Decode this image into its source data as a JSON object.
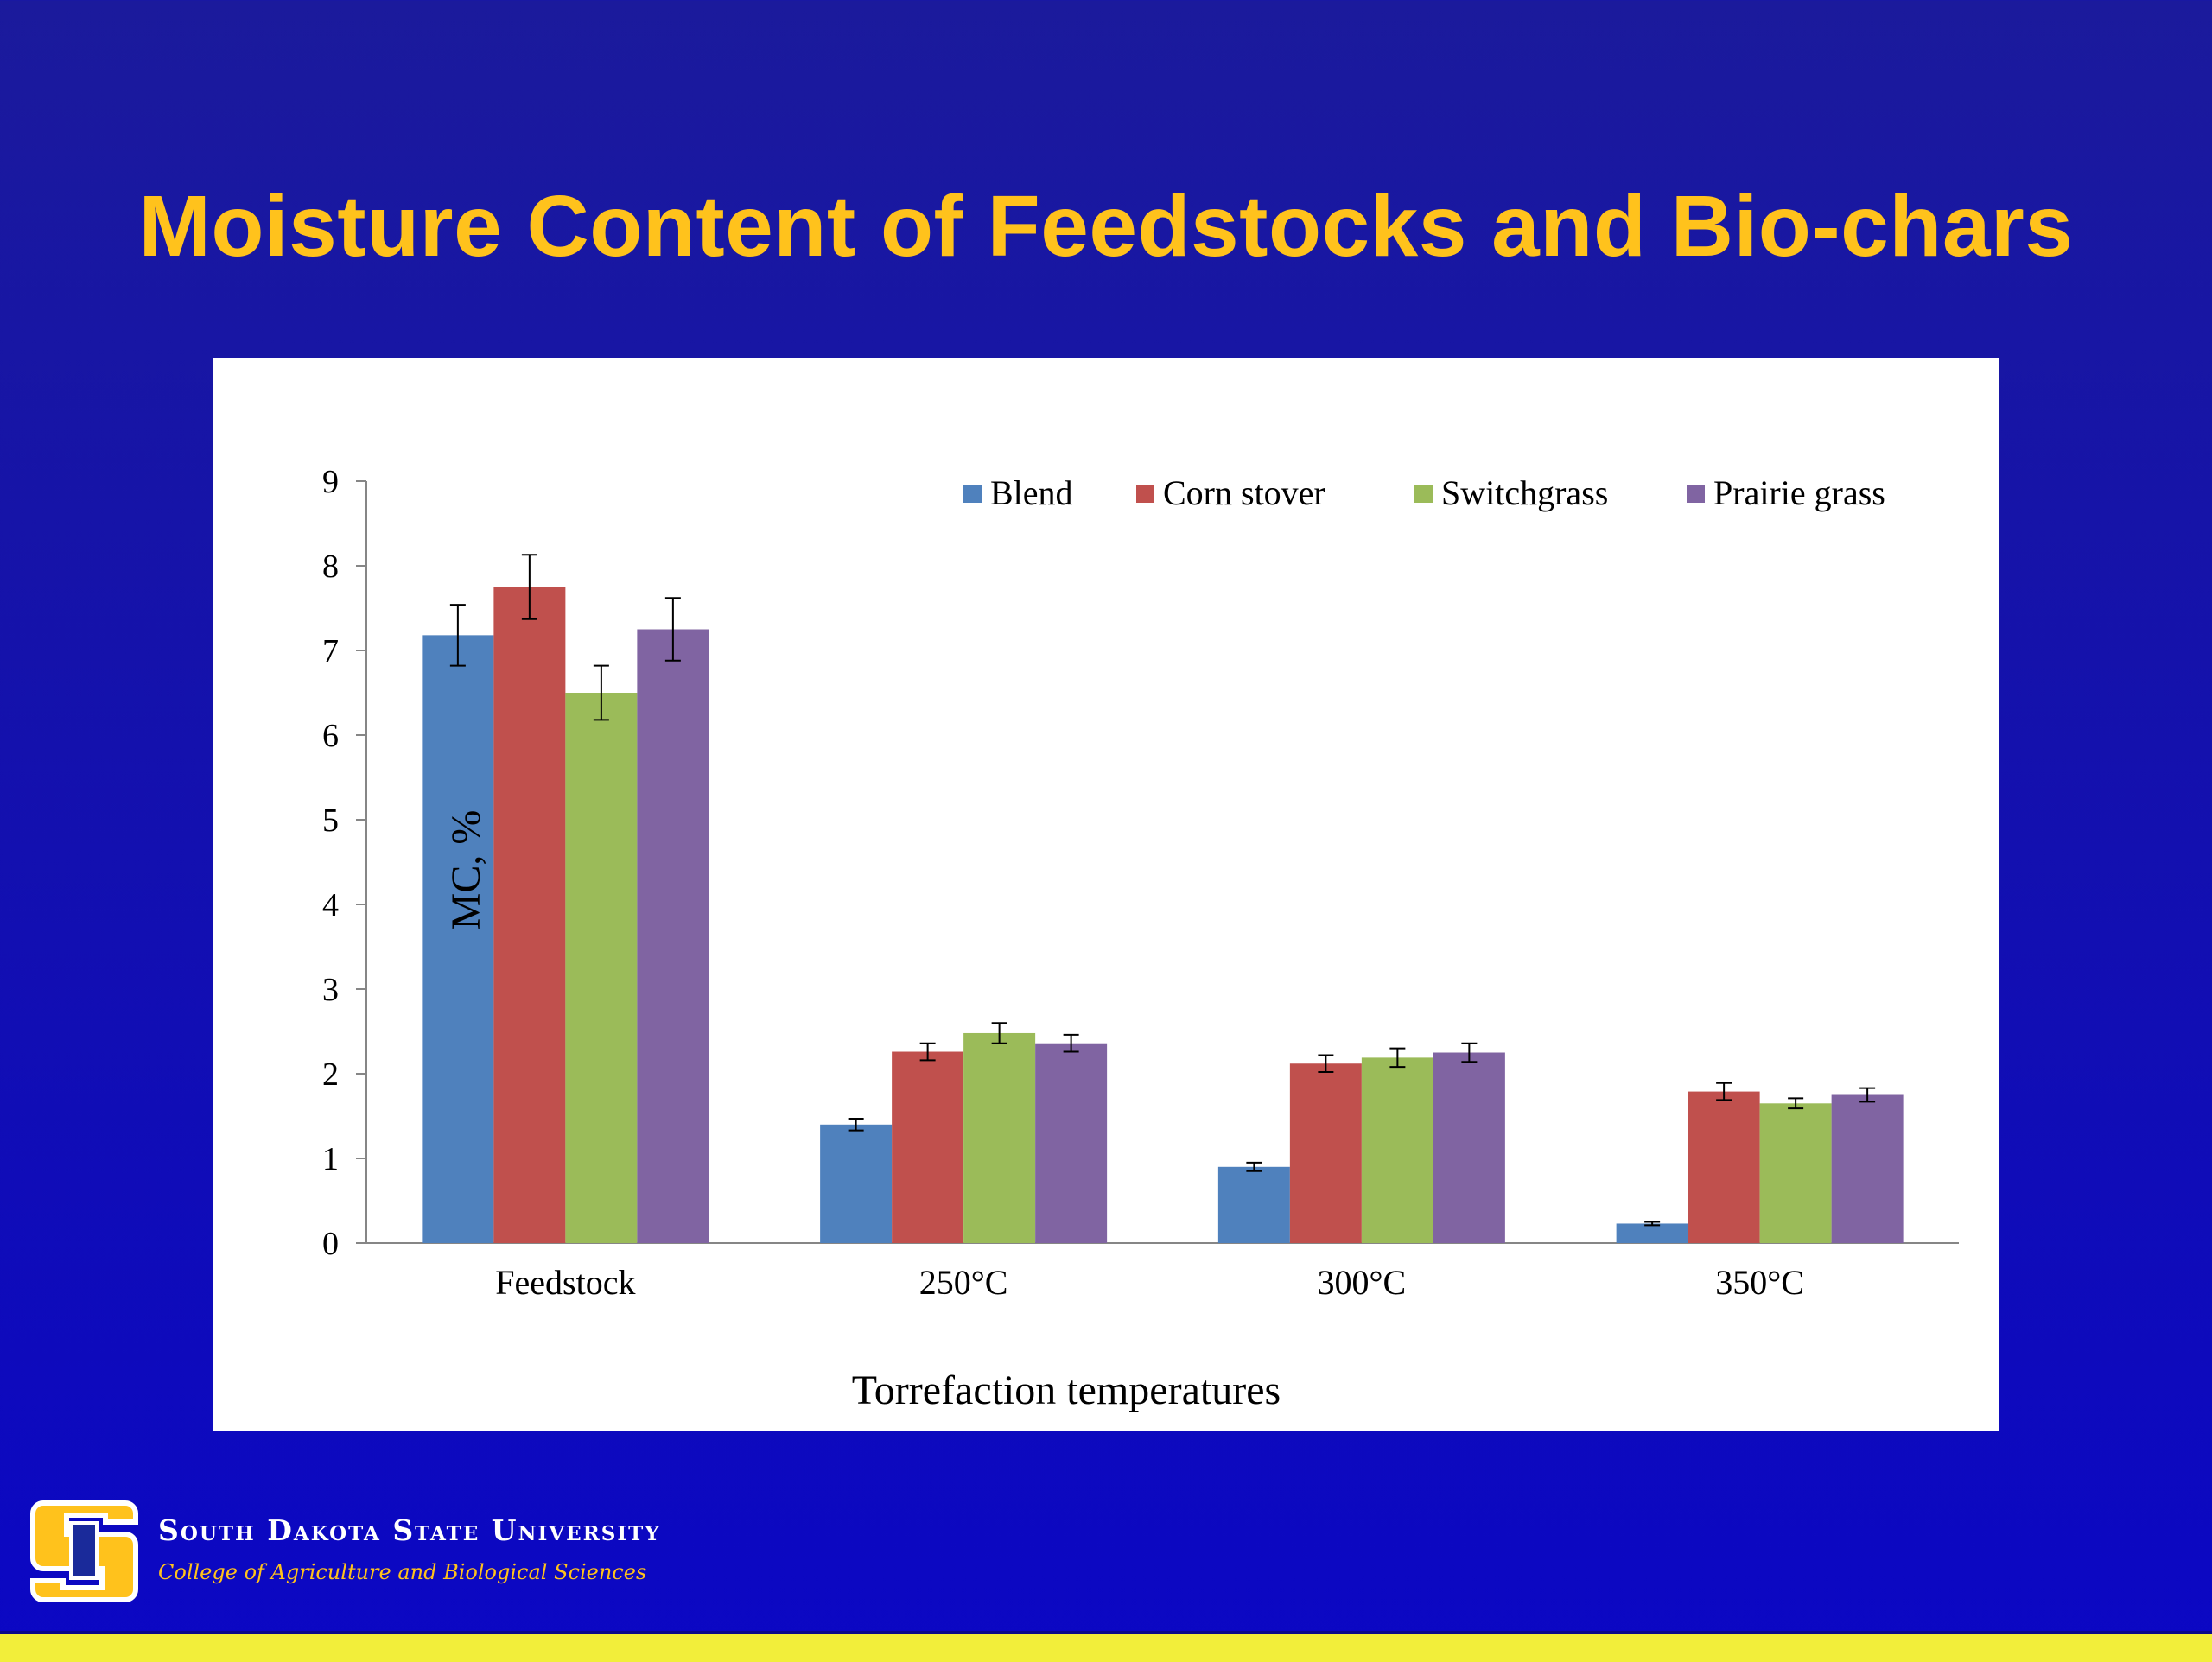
{
  "slide": {
    "title": "Moisture Content of Feedstocks and Bio-chars",
    "university": "South Dakota State University",
    "college": "College of Agriculture and Biological Sciences",
    "colors": {
      "title": "#ffc21c",
      "background": "#1411ad",
      "footer_bar": "#f2ee3a"
    },
    "logo_icon": "sdsu-monogram-logo"
  },
  "chart_data": {
    "type": "bar",
    "title": "",
    "xlabel": "Torrefaction temperatures",
    "ylabel": "MC, %",
    "ylim": [
      0,
      9
    ],
    "yticks": [
      "0",
      "1",
      "2",
      "3",
      "4",
      "5",
      "6",
      "7",
      "8",
      "9"
    ],
    "categories": [
      "Feedstock",
      "250°C",
      "300°C",
      "350°C"
    ],
    "legend_position": "top-right",
    "grid": false,
    "series": [
      {
        "name": "Blend",
        "color": "#4f81bd",
        "values": [
          7.18,
          1.4,
          0.9,
          0.23
        ],
        "errors": [
          0.36,
          0.07,
          0.05,
          0.02
        ]
      },
      {
        "name": "Corn stover",
        "color": "#c0504d",
        "values": [
          7.75,
          2.26,
          2.12,
          1.79
        ],
        "errors": [
          0.38,
          0.1,
          0.1,
          0.1
        ]
      },
      {
        "name": "Switchgrass",
        "color": "#9bbb59",
        "values": [
          6.5,
          2.48,
          2.19,
          1.65
        ],
        "errors": [
          0.32,
          0.12,
          0.11,
          0.06
        ]
      },
      {
        "name": "Prairie grass",
        "color": "#8064a2",
        "values": [
          7.25,
          2.36,
          2.25,
          1.75
        ],
        "errors": [
          0.37,
          0.1,
          0.11,
          0.08
        ]
      }
    ]
  }
}
